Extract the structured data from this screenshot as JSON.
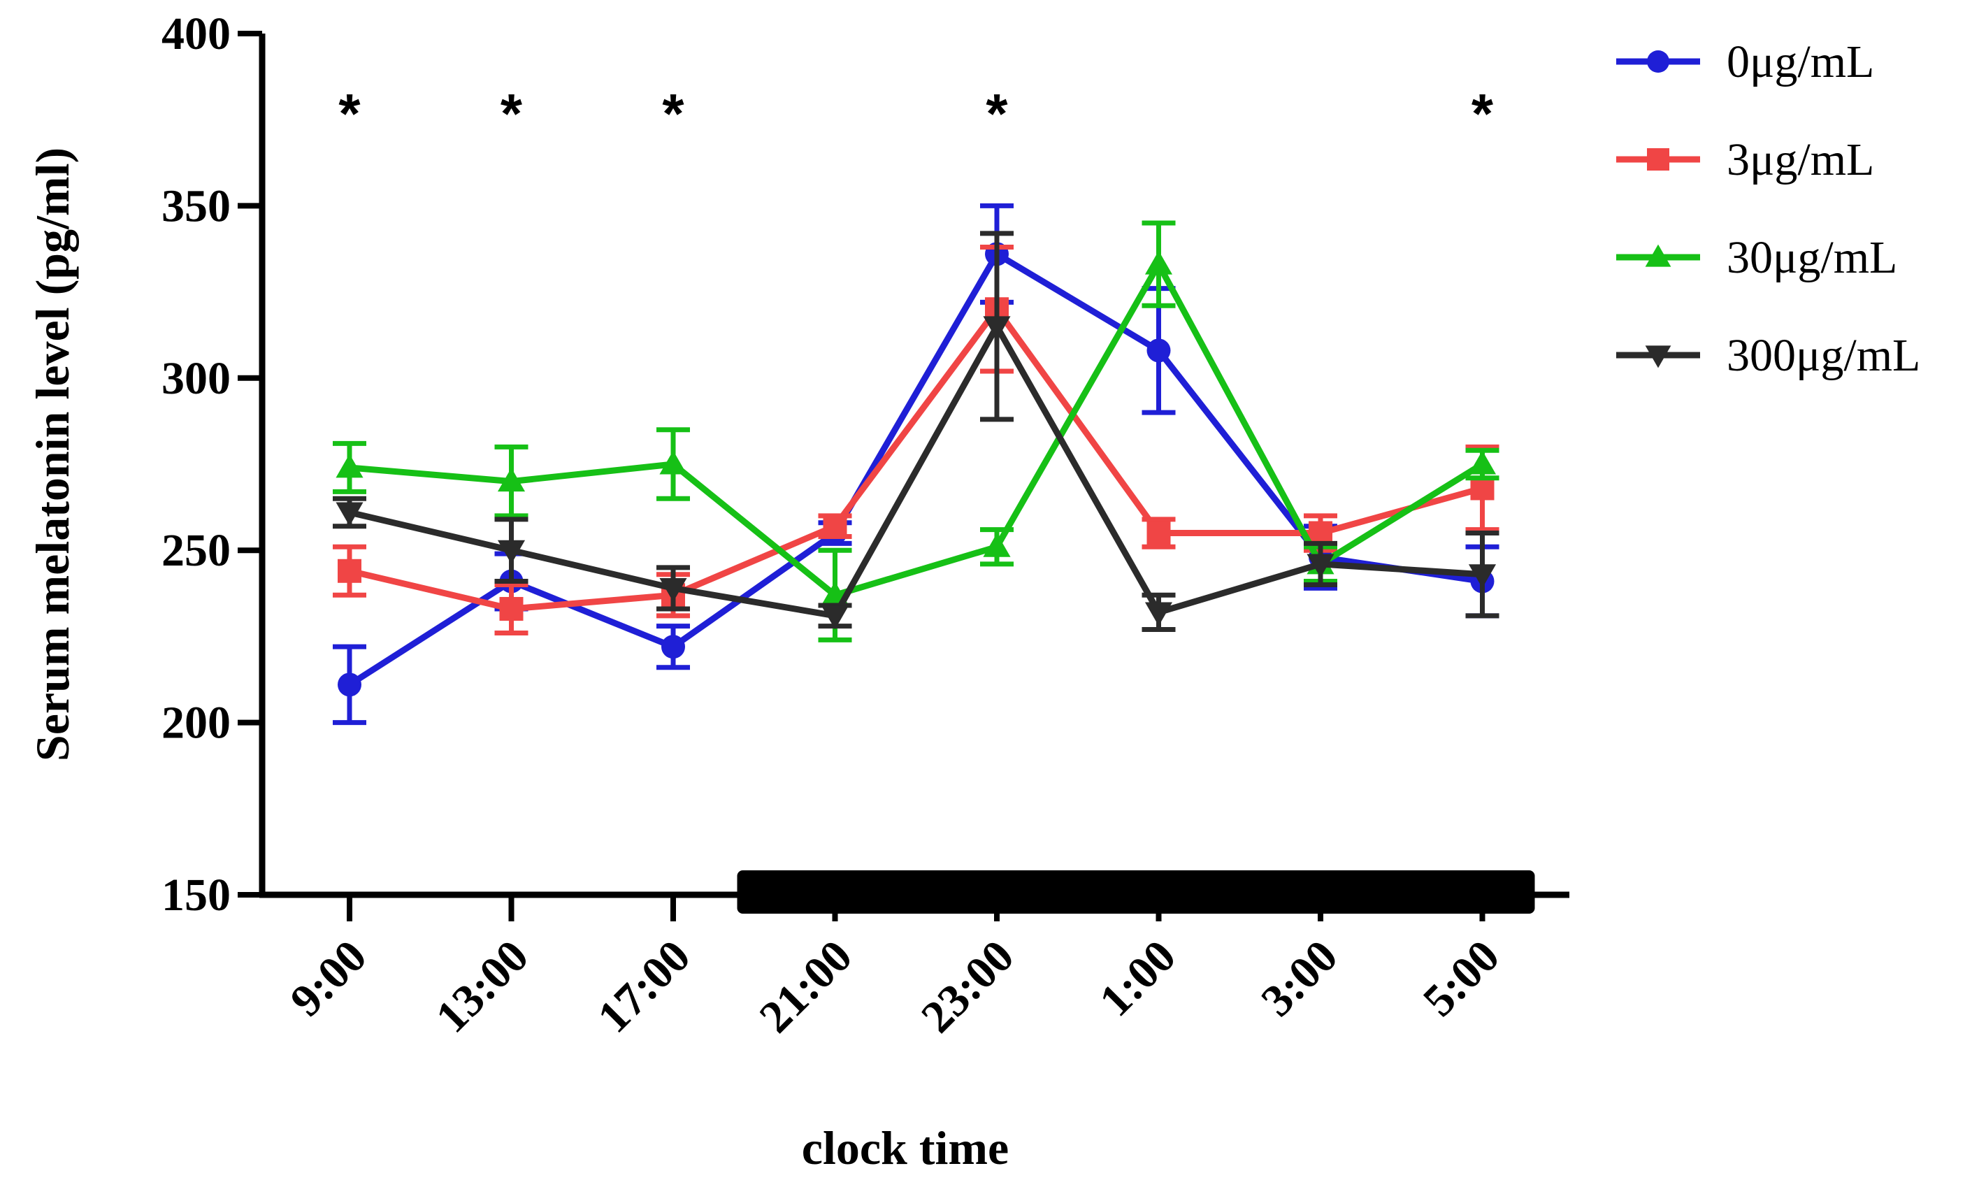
{
  "chart_data": {
    "type": "line",
    "xlabel": "clock time",
    "ylabel": "Serum melatonin level (pg/ml)",
    "categories": [
      "9:00",
      "13:00",
      "17:00",
      "21:00",
      "23:00",
      "1:00",
      "3:00",
      "5:00"
    ],
    "ylim": [
      150,
      400
    ],
    "yticks": [
      "150",
      "200",
      "250",
      "300",
      "350",
      "400"
    ],
    "grid": false,
    "legend_position": "top-right",
    "dark_period": {
      "from": "21:00",
      "to": "5:00"
    },
    "significance_marker": "*",
    "significant_categories": [
      "9:00",
      "13:00",
      "17:00",
      "23:00",
      "5:00"
    ],
    "series": [
      {
        "name": "0μg/mL",
        "color": "#1f1fd6",
        "marker": "circle",
        "values": [
          211,
          241,
          222,
          255,
          336,
          308,
          248,
          241
        ],
        "errors": [
          11,
          8,
          6,
          3,
          14,
          18,
          9,
          10
        ]
      },
      {
        "name": "3μg/mL",
        "color": "#f04545",
        "marker": "square",
        "values": [
          244,
          233,
          237,
          257,
          320,
          255,
          255,
          268
        ],
        "errors": [
          7,
          7,
          6,
          3,
          18,
          4,
          5,
          12
        ]
      },
      {
        "name": "30μg/mL",
        "color": "#16c016",
        "marker": "triangle-up",
        "values": [
          274,
          270,
          275,
          237,
          251,
          333,
          246,
          275
        ],
        "errors": [
          7,
          10,
          10,
          13,
          5,
          12,
          5,
          4
        ]
      },
      {
        "name": "300μg/mL",
        "color": "#2b2b2b",
        "marker": "triangle-down",
        "values": [
          261,
          250,
          239,
          231,
          315,
          232,
          246,
          243
        ],
        "errors": [
          4,
          9,
          6,
          3,
          27,
          5,
          6,
          12
        ]
      }
    ]
  }
}
